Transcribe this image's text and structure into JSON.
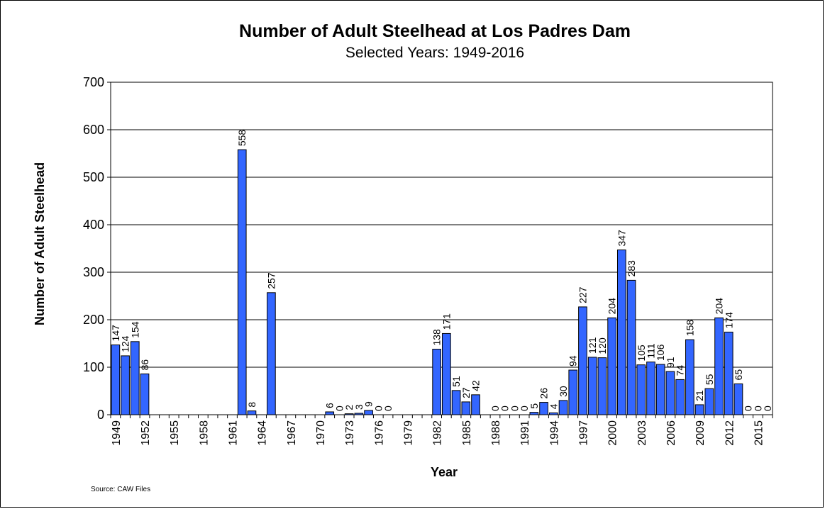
{
  "chart_data": {
    "type": "bar",
    "title": "Number of Adult Steelhead at Los Padres Dam",
    "subtitle": "Selected Years: 1949-2016",
    "xlabel": "Year",
    "ylabel": "Number of Adult Steelhead",
    "source": "Source:  CAW Files",
    "ylim": [
      0,
      700
    ],
    "yticks": [
      0,
      100,
      200,
      300,
      400,
      500,
      600,
      700
    ],
    "grid": true,
    "legend": "none",
    "bar_color": "#3366ff",
    "x_tick_labels": [
      "1949",
      "1952",
      "1955",
      "1958",
      "1961",
      "1964",
      "1967",
      "1970",
      "1973",
      "1976",
      "1979",
      "1982",
      "1985",
      "1988",
      "1991",
      "1994",
      "1997",
      "2000",
      "2003",
      "2006",
      "2009",
      "2012",
      "2015"
    ],
    "x_tick_years": [
      1949,
      1952,
      1955,
      1958,
      1961,
      1964,
      1967,
      1970,
      1973,
      1976,
      1979,
      1982,
      1985,
      1988,
      1991,
      1994,
      1997,
      2000,
      2003,
      2006,
      2009,
      2012,
      2015
    ],
    "x_range": [
      1949,
      2016
    ],
    "data": [
      {
        "year": 1949,
        "value": 147
      },
      {
        "year": 1950,
        "value": 124
      },
      {
        "year": 1951,
        "value": 154
      },
      {
        "year": 1952,
        "value": 86
      },
      {
        "year": 1962,
        "value": 558
      },
      {
        "year": 1963,
        "value": 8
      },
      {
        "year": 1965,
        "value": 257
      },
      {
        "year": 1971,
        "value": 6
      },
      {
        "year": 1972,
        "value": 0
      },
      {
        "year": 1973,
        "value": 2
      },
      {
        "year": 1974,
        "value": 3
      },
      {
        "year": 1975,
        "value": 9
      },
      {
        "year": 1976,
        "value": 0
      },
      {
        "year": 1977,
        "value": 0
      },
      {
        "year": 1982,
        "value": 138
      },
      {
        "year": 1983,
        "value": 171
      },
      {
        "year": 1984,
        "value": 51
      },
      {
        "year": 1985,
        "value": 27
      },
      {
        "year": 1986,
        "value": 42
      },
      {
        "year": 1988,
        "value": 0
      },
      {
        "year": 1989,
        "value": 0
      },
      {
        "year": 1990,
        "value": 0
      },
      {
        "year": 1991,
        "value": 0
      },
      {
        "year": 1992,
        "value": 5
      },
      {
        "year": 1993,
        "value": 26
      },
      {
        "year": 1994,
        "value": 4
      },
      {
        "year": 1995,
        "value": 30
      },
      {
        "year": 1996,
        "value": 94
      },
      {
        "year": 1997,
        "value": 227
      },
      {
        "year": 1998,
        "value": 121
      },
      {
        "year": 1999,
        "value": 120
      },
      {
        "year": 2000,
        "value": 204
      },
      {
        "year": 2001,
        "value": 347
      },
      {
        "year": 2002,
        "value": 283
      },
      {
        "year": 2003,
        "value": 105
      },
      {
        "year": 2004,
        "value": 111
      },
      {
        "year": 2005,
        "value": 106
      },
      {
        "year": 2006,
        "value": 91
      },
      {
        "year": 2007,
        "value": 74
      },
      {
        "year": 2008,
        "value": 158
      },
      {
        "year": 2009,
        "value": 21
      },
      {
        "year": 2010,
        "value": 55
      },
      {
        "year": 2011,
        "value": 204
      },
      {
        "year": 2012,
        "value": 174
      },
      {
        "year": 2013,
        "value": 65
      },
      {
        "year": 2014,
        "value": 0
      },
      {
        "year": 2015,
        "value": 0
      },
      {
        "year": 2016,
        "value": 0
      }
    ]
  }
}
